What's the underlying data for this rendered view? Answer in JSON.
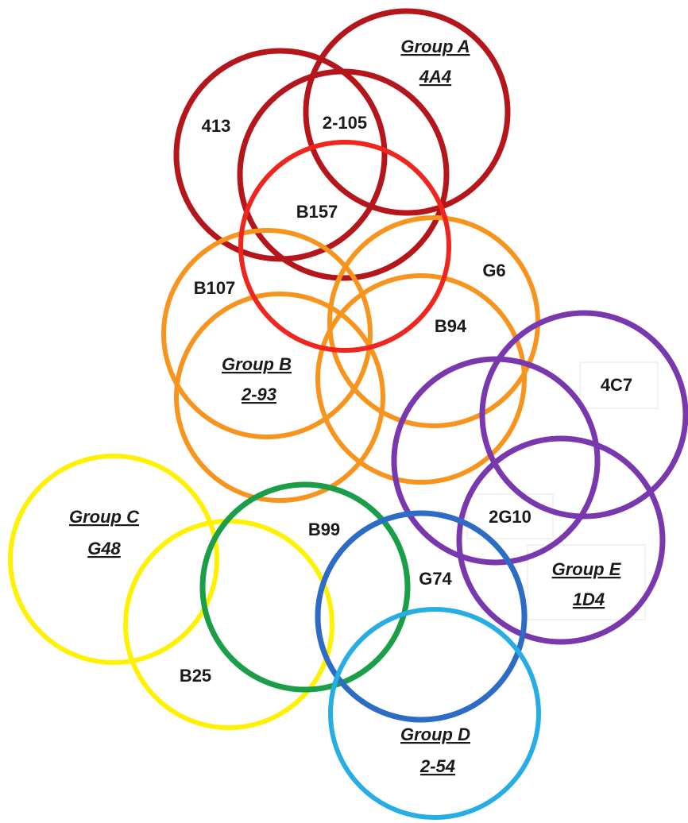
{
  "colors": {
    "dark_red": "#B5161C",
    "red": "#F0261E",
    "orange": "#F7941D",
    "purple": "#7A38AE",
    "yellow": "#FFF200",
    "green": "#1B9E48",
    "blue": "#2C6CC4",
    "light_blue": "#26ADE4"
  },
  "labels": {
    "group_a_name": "Group A",
    "group_a_id": "4A4",
    "l_413": "413",
    "l_2_105": "2-105",
    "l_b157": "B157",
    "l_b107": "B107",
    "l_g6": "G6",
    "l_b94": "B94",
    "group_b_name": "Group B",
    "group_b_id": "2-93",
    "l_4c7": "4C7",
    "l_2g10": "2G10",
    "group_e_name": "Group E",
    "group_e_id": "1D4",
    "group_c_name": "Group C",
    "group_c_id": "G48",
    "l_b99": "B99",
    "l_g74": "G74",
    "l_b25": "B25",
    "group_d_name": "Group D",
    "group_d_id": "2-54"
  }
}
